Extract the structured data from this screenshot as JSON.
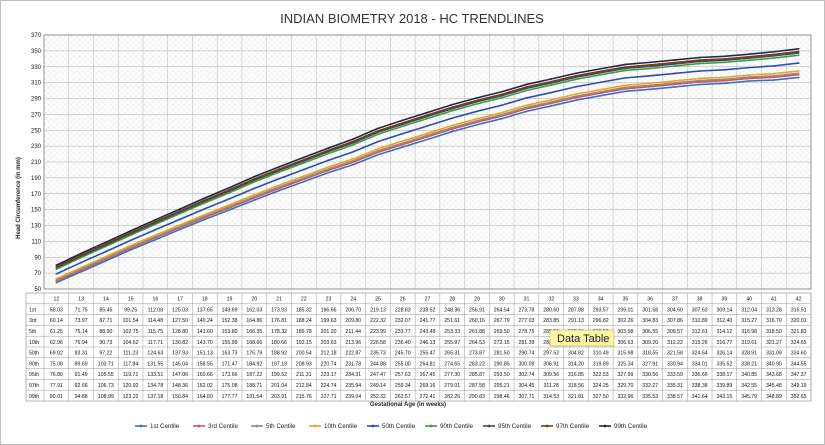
{
  "chart_data": {
    "type": "line",
    "title": "INDIAN BIOMETRY 2018 - HC TRENDLINES",
    "xlabel": "Gestational Age (in weeks)",
    "ylabel": "Head Circumference (in mm)",
    "ylim": [
      50,
      370
    ],
    "yticks": [
      50,
      70,
      90,
      110,
      130,
      150,
      170,
      190,
      210,
      230,
      250,
      270,
      290,
      310,
      330,
      350,
      370
    ],
    "grid": true,
    "legend_position": "bottom",
    "x": [
      12,
      13,
      14,
      15,
      16,
      17,
      18,
      19,
      20,
      21,
      22,
      23,
      24,
      25,
      26,
      27,
      28,
      29,
      30,
      31,
      32,
      33,
      34,
      35,
      36,
      37,
      38,
      39,
      40,
      41,
      42
    ],
    "series": [
      {
        "name": "1st Centile",
        "row_label": "1st",
        "color": "#3b6fc9",
        "values": [
          "58.03",
          "71.75",
          "85.45",
          "99.25",
          "112.08",
          "125.03",
          "137.65",
          "149.69",
          "162.03",
          "173.93",
          "185.32",
          "196.66",
          "206.70",
          "219.13",
          "228.83",
          "238.52",
          "248.36",
          "256.91",
          "264.54",
          "273.78",
          "280.60",
          "287.88",
          "293.57",
          "299.01",
          "301.58",
          "304.60",
          "307.63",
          "309.14",
          "312.04",
          "313.28",
          "316.51"
        ]
      },
      {
        "name": "3rd Centile",
        "row_label": "3rd",
        "color": "#d9534f",
        "values": [
          "60.14",
          "73.97",
          "87.71",
          "101.54",
          "114.48",
          "127.50",
          "140.24",
          "152.38",
          "164.86",
          "176.81",
          "188.24",
          "199.63",
          "209.80",
          "222.32",
          "232.07",
          "241.77",
          "251.61",
          "260.16",
          "267.79",
          "277.03",
          "283.85",
          "291.13",
          "296.82",
          "302.26",
          "304.83",
          "307.86",
          "310.89",
          "312.40",
          "315.27",
          "316.70",
          "320.01"
        ]
      },
      {
        "name": "5th Centile",
        "row_label": "5th",
        "color": "#8c8c8c",
        "values": [
          "61.25",
          "75.14",
          "88.90",
          "102.75",
          "115.75",
          "128.80",
          "141.60",
          "153.80",
          "166.35",
          "178.32",
          "189.78",
          "201.20",
          "211.44",
          "223.99",
          "233.77",
          "243.48",
          "253.33",
          "261.88",
          "269.50",
          "278.75",
          "285.56",
          "292.84",
          "298.53",
          "303.98",
          "306.55",
          "309.57",
          "312.61",
          "314.12",
          "316.98",
          "318.50",
          "321.83"
        ]
      },
      {
        "name": "10th Centile",
        "row_label": "10th",
        "color": "#f0a020",
        "values": [
          "62.96",
          "76.94",
          "90.73",
          "104.62",
          "117.71",
          "130.82",
          "143.70",
          "155.99",
          "168.66",
          "180.66",
          "192.15",
          "203.63",
          "213.96",
          "226.58",
          "236.40",
          "246.13",
          "255.97",
          "264.53",
          "272.15",
          "281.39",
          "288.17",
          "295.48",
          "301.15",
          "306.63",
          "309.20",
          "312.22",
          "315.26",
          "316.77",
          "319.61",
          "321.27",
          "324.65"
        ]
      },
      {
        "name": "50th Centile",
        "row_label": "50th",
        "color": "#2a4fae",
        "values": [
          "69.02",
          "83.31",
          "97.22",
          "111.23",
          "124.63",
          "137.93",
          "151.13",
          "163.73",
          "176.79",
          "188.92",
          "200.54",
          "212.18",
          "222.87",
          "235.73",
          "245.70",
          "255.47",
          "265.31",
          "273.87",
          "281.50",
          "290.74",
          "297.52",
          "304.82",
          "310.49",
          "315.98",
          "318.55",
          "321.58",
          "324.64",
          "326.14",
          "328.91",
          "331.09",
          "334.60"
        ]
      },
      {
        "name": "90th Centile",
        "row_label": "90th",
        "color": "#3f9b3f",
        "values": [
          "75.08",
          "89.69",
          "103.71",
          "117.84",
          "131.55",
          "145.04",
          "158.55",
          "171.47",
          "184.92",
          "197.18",
          "208.93",
          "220.74",
          "231.78",
          "244.88",
          "255.00",
          "264.81",
          "274.65",
          "283.22",
          "290.85",
          "300.09",
          "306.91",
          "314.20",
          "319.89",
          "325.34",
          "327.91",
          "330.94",
          "334.01",
          "335.52",
          "338.21",
          "340.90",
          "344.55"
        ]
      },
      {
        "name": "95th Centile",
        "row_label": "95th",
        "color": "#3a4a6b",
        "values": [
          "76.80",
          "91.49",
          "105.55",
          "119.71",
          "133.51",
          "147.06",
          "160.66",
          "173.66",
          "187.22",
          "199.52",
          "211.31",
          "223.17",
          "234.31",
          "247.47",
          "257.63",
          "267.45",
          "277.30",
          "285.87",
          "293.50",
          "302.74",
          "309.56",
          "316.85",
          "322.53",
          "327.99",
          "330.56",
          "333.59",
          "336.66",
          "338.17",
          "340.85",
          "343.68",
          "347.37"
        ]
      },
      {
        "name": "97th Centile",
        "row_label": "97th",
        "color": "#7a3d12",
        "values": [
          "77.91",
          "92.66",
          "106.73",
          "120.92",
          "134.78",
          "148.36",
          "162.02",
          "175.08",
          "188.71",
          "201.04",
          "212.84",
          "224.74",
          "235.94",
          "249.14",
          "259.34",
          "269.16",
          "279.01",
          "287.58",
          "295.21",
          "304.45",
          "311.28",
          "318.56",
          "324.25",
          "329.70",
          "332.27",
          "335.31",
          "338.38",
          "339.89",
          "342.55",
          "345.48",
          "349.19"
        ]
      },
      {
        "name": "99th Centile",
        "row_label": "99th",
        "color": "#1f2a44",
        "values": [
          "80.01",
          "94.88",
          "108.99",
          "123.22",
          "137.18",
          "150.84",
          "164.60",
          "177.77",
          "191.54",
          "203.91",
          "215.76",
          "227.71",
          "239.04",
          "252.32",
          "262.57",
          "272.41",
          "282.26",
          "290.83",
          "298.46",
          "307.71",
          "314.53",
          "321.81",
          "327.50",
          "332.96",
          "335.53",
          "338.57",
          "341.64",
          "343.15",
          "345.79",
          "348.89",
          "352.65"
        ]
      }
    ],
    "tooltip": "Data Table"
  }
}
